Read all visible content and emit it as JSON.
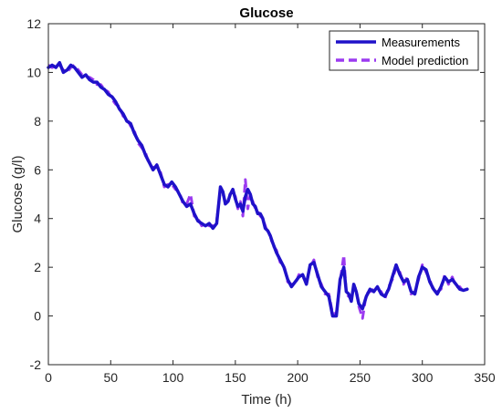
{
  "chart_data": {
    "type": "line",
    "title": "Glucose",
    "xlabel": "Time (h)",
    "ylabel": "Glucose (g/l)",
    "xlim": [
      0,
      350
    ],
    "ylim": [
      -2,
      12
    ],
    "xticks": [
      0,
      50,
      100,
      150,
      200,
      250,
      300,
      350
    ],
    "yticks": [
      -2,
      0,
      2,
      4,
      6,
      8,
      10,
      12
    ],
    "grid": false,
    "legend_position": "top-right",
    "series": [
      {
        "name": "Measurements",
        "color": "#1f11c9",
        "style": "solid",
        "x": [
          0,
          3,
          6,
          9,
          12,
          15,
          18,
          21,
          24,
          27,
          30,
          33,
          36,
          39,
          42,
          45,
          48,
          51,
          54,
          57,
          60,
          63,
          66,
          69,
          72,
          75,
          78,
          81,
          84,
          87,
          90,
          93,
          96,
          99,
          102,
          105,
          108,
          111,
          114,
          117,
          120,
          123,
          126,
          129,
          132,
          135,
          138,
          140,
          142,
          144,
          146,
          148,
          150,
          152,
          154,
          156,
          158,
          160,
          162,
          164,
          166,
          168,
          170,
          172,
          174,
          176,
          178,
          180,
          183,
          186,
          189,
          192,
          195,
          198,
          201,
          204,
          207,
          210,
          213,
          216,
          219,
          222,
          225,
          228,
          231,
          234,
          237,
          239,
          241,
          243,
          245,
          247,
          249,
          252,
          255,
          258,
          261,
          264,
          267,
          270,
          273,
          276,
          279,
          282,
          285,
          288,
          291,
          294,
          297,
          300,
          303,
          306,
          309,
          312,
          315,
          318,
          321,
          324,
          327,
          330,
          333,
          336
        ],
        "y": [
          10.2,
          10.3,
          10.2,
          10.4,
          10.0,
          10.1,
          10.3,
          10.2,
          10.0,
          9.8,
          9.9,
          9.7,
          9.6,
          9.6,
          9.4,
          9.3,
          9.1,
          9.0,
          8.8,
          8.5,
          8.3,
          8.0,
          7.9,
          7.5,
          7.2,
          7.0,
          6.6,
          6.3,
          6.0,
          6.2,
          5.8,
          5.4,
          5.3,
          5.5,
          5.3,
          5.0,
          4.7,
          4.5,
          4.6,
          4.2,
          3.9,
          3.8,
          3.7,
          3.8,
          3.6,
          3.8,
          5.3,
          5.1,
          4.6,
          4.7,
          5.0,
          5.2,
          4.8,
          4.5,
          4.6,
          4.3,
          4.9,
          5.2,
          5.0,
          4.6,
          4.5,
          4.2,
          4.2,
          4.0,
          3.6,
          3.5,
          3.3,
          3.0,
          2.6,
          2.3,
          2.0,
          1.5,
          1.2,
          1.4,
          1.6,
          1.7,
          1.3,
          2.1,
          2.2,
          1.7,
          1.2,
          1.0,
          0.8,
          0.0,
          0.0,
          1.5,
          2.0,
          1.0,
          0.9,
          0.6,
          1.3,
          1.0,
          0.5,
          0.3,
          0.8,
          1.1,
          1.0,
          1.2,
          0.9,
          0.8,
          1.1,
          1.6,
          2.1,
          1.7,
          1.4,
          1.5,
          1.0,
          0.9,
          1.6,
          2.0,
          1.9,
          1.4,
          1.1,
          0.9,
          1.2,
          1.6,
          1.4,
          1.5,
          1.3,
          1.1,
          1.05,
          1.1
        ]
      },
      {
        "name": "Model prediction",
        "color": "#9b3af0",
        "style": "dashed",
        "x": [
          0,
          3,
          6,
          9,
          12,
          15,
          18,
          21,
          24,
          27,
          30,
          33,
          36,
          39,
          42,
          45,
          48,
          51,
          54,
          57,
          60,
          63,
          66,
          69,
          72,
          75,
          78,
          81,
          84,
          87,
          90,
          93,
          96,
          99,
          102,
          105,
          108,
          111,
          114,
          117,
          120,
          123,
          126,
          129,
          132,
          135,
          138,
          140,
          142,
          144,
          146,
          148,
          150,
          152,
          154,
          156,
          158,
          160,
          162,
          164,
          166,
          168,
          170,
          172,
          174,
          176,
          178,
          180,
          183,
          186,
          189,
          192,
          195,
          198,
          201,
          204,
          207,
          210,
          213,
          216,
          219,
          222,
          225,
          228,
          231,
          234,
          237,
          239,
          241,
          243,
          245,
          247,
          249,
          252,
          255,
          258,
          261,
          264,
          267,
          270,
          273,
          276,
          279,
          282,
          285,
          288,
          291,
          294,
          297,
          300,
          303,
          306,
          309,
          312,
          315,
          318,
          321,
          324,
          327,
          330,
          333,
          336
        ],
        "y": [
          10.3,
          10.2,
          10.3,
          10.3,
          10.1,
          10.0,
          10.2,
          10.3,
          10.1,
          9.9,
          9.8,
          9.8,
          9.7,
          9.5,
          9.5,
          9.3,
          9.2,
          8.9,
          8.7,
          8.6,
          8.2,
          8.1,
          7.8,
          7.6,
          7.1,
          6.9,
          6.7,
          6.2,
          6.1,
          6.1,
          5.9,
          5.3,
          5.4,
          5.4,
          5.2,
          5.1,
          4.6,
          4.6,
          5.0,
          4.1,
          4.0,
          3.7,
          3.8,
          3.7,
          3.7,
          3.9,
          5.2,
          5.0,
          4.7,
          4.6,
          5.1,
          5.1,
          4.9,
          4.4,
          4.7,
          4.1,
          5.6,
          4.4,
          5.0,
          4.7,
          4.4,
          4.3,
          4.1,
          4.0,
          3.7,
          3.4,
          3.3,
          2.9,
          2.7,
          2.2,
          2.1,
          1.4,
          1.3,
          1.3,
          1.7,
          1.6,
          1.4,
          2.0,
          2.3,
          1.6,
          1.3,
          0.9,
          0.9,
          0.1,
          0.1,
          1.4,
          2.5,
          0.9,
          0.8,
          0.7,
          1.2,
          1.1,
          0.4,
          -0.1,
          0.9,
          1.0,
          1.1,
          1.1,
          1.0,
          0.7,
          1.2,
          1.5,
          2.0,
          1.8,
          1.3,
          1.6,
          0.9,
          1.0,
          1.5,
          2.1,
          1.8,
          1.5,
          1.0,
          1.0,
          1.1,
          1.7,
          1.3,
          1.6,
          1.2,
          1.2,
          1.0,
          1.1
        ]
      }
    ]
  }
}
